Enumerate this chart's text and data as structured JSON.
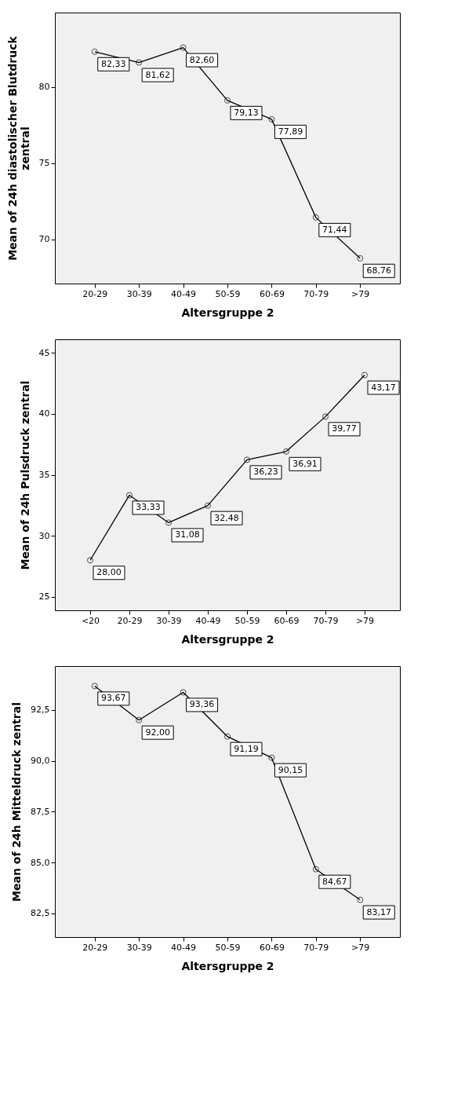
{
  "chart_data": [
    {
      "type": "line",
      "xlabel": "Altersgruppe 2",
      "ylabel": "Mean of 24h diastolischer Blutdruck zentral",
      "categories": [
        "20-29",
        "30-39",
        "40-49",
        "50-59",
        "60-69",
        "70-79",
        ">79"
      ],
      "series": [
        {
          "color": "#000000",
          "values": [
            82.33,
            81.62,
            82.6,
            79.13,
            77.89,
            71.44,
            68.76
          ],
          "value_labels": [
            "82,33",
            "81,62",
            "82,60",
            "79,13",
            "77,89",
            "71,44",
            "68,76"
          ]
        }
      ],
      "ylim": [
        67.1,
        84.9
      ],
      "yticks": [
        70,
        75,
        80
      ],
      "grid": false,
      "marker": "circle",
      "line_style": "solid"
    },
    {
      "type": "line",
      "xlabel": "Altersgruppe 2",
      "ylabel": "Mean of 24h Pulsdruck zentral",
      "categories": [
        "<20",
        "20-29",
        "30-39",
        "40-49",
        "50-59",
        "60-69",
        "70-79",
        ">79"
      ],
      "series": [
        {
          "color": "#000000",
          "values": [
            28.0,
            33.33,
            31.08,
            32.48,
            36.23,
            36.91,
            39.77,
            43.17
          ],
          "value_labels": [
            "28,00",
            "33,33",
            "31,08",
            "32,48",
            "36,23",
            "36,91",
            "39,77",
            "43,17"
          ]
        }
      ],
      "ylim": [
        23.9,
        46.1
      ],
      "yticks": [
        25,
        30,
        35,
        40,
        45
      ],
      "grid": false,
      "marker": "circle",
      "line_style": "solid"
    },
    {
      "type": "line",
      "xlabel": "Altersgruppe 2",
      "ylabel": "Mean of 24h Mitteldruck zentral",
      "categories": [
        "20-29",
        "30-39",
        "40-49",
        "50-59",
        "60-69",
        "70-79",
        ">79"
      ],
      "series": [
        {
          "color": "#000000",
          "values": [
            93.67,
            92.0,
            93.36,
            91.19,
            90.15,
            84.67,
            83.17
          ],
          "value_labels": [
            "93,67",
            "92,00",
            "93,36",
            "91,19",
            "90,15",
            "84,67",
            "83,17"
          ]
        }
      ],
      "ylim": [
        81.34,
        94.65
      ],
      "yticks": [
        {
          "value": 82.5,
          "label": "82,5"
        },
        {
          "value": 85,
          "label": "85,0"
        },
        {
          "value": 87.5,
          "label": "87,5"
        },
        {
          "value": 90,
          "label": "90,0"
        },
        {
          "value": 92.5,
          "label": "92,5"
        }
      ],
      "grid": false,
      "marker": "circle",
      "line_style": "solid"
    }
  ]
}
